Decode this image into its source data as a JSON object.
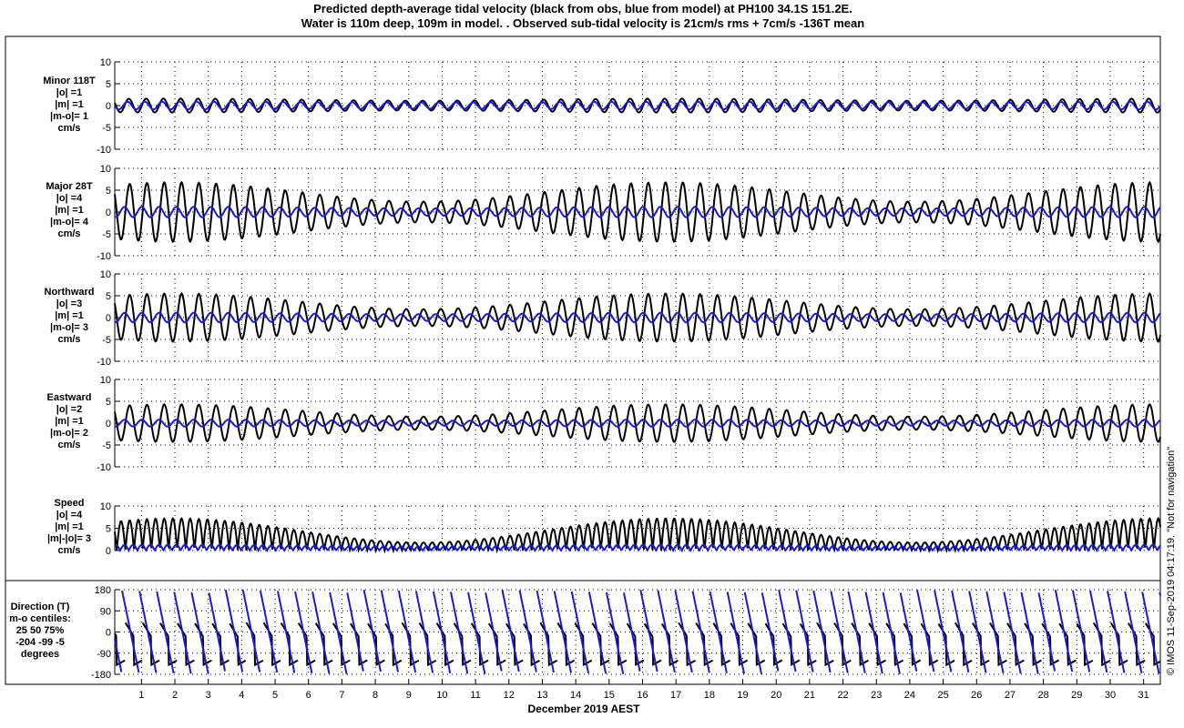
{
  "title_line1": "Predicted depth-average tidal velocity (black from obs, blue from model) at PH100 34.1S 151.2E.",
  "title_line2": "Water is 110m deep, 109m in model. . Observed sub-tidal velocity is 21cm/s rms + 7cm/s -136T mean",
  "copyright": "© IMOS 11-Sep-2019 04:17:19. \"Not for navigation\"",
  "colors": {
    "obs": "#000000",
    "model": "#1a1ad6",
    "frame": "#000000",
    "grid": "#000000"
  },
  "chart_data": {
    "type": "line",
    "xlabel": "December 2019 AEST",
    "x_ticks": [
      "1",
      "2",
      "3",
      "4",
      "5",
      "6",
      "7",
      "8",
      "9",
      "10",
      "11",
      "12",
      "13",
      "14",
      "15",
      "16",
      "17",
      "18",
      "19",
      "20",
      "21",
      "22",
      "23",
      "24",
      "25",
      "26",
      "27",
      "28",
      "29",
      "30",
      "31"
    ],
    "xlim": [
      0.2,
      31.5
    ],
    "grid": true,
    "panels": [
      {
        "id": "minor",
        "label_lines": [
          "Minor 118T",
          "|o| =1",
          "|m| =1",
          "|m-o|= 1",
          "cm/s"
        ],
        "ylim": [
          -10,
          10
        ],
        "yticks": [
          "10",
          "5",
          "0",
          "-5",
          "-10"
        ],
        "series": [
          {
            "name": "obs",
            "amplitude": 1.6,
            "spring_neap": 0.3,
            "phase": 0.3
          },
          {
            "name": "model",
            "amplitude": 0.9,
            "spring_neap": 0.2,
            "phase": 0.8
          }
        ]
      },
      {
        "id": "major",
        "label_lines": [
          "Major 28T",
          "|o| =4",
          "|m| =1",
          "|m-o|= 4",
          "cm/s"
        ],
        "ylim": [
          -10,
          10
        ],
        "yticks": [
          "10",
          "5",
          "0",
          "-5",
          "-10"
        ],
        "series": [
          {
            "name": "obs",
            "amplitude": 6.8,
            "spring_neap": 0.65,
            "phase": 0.0
          },
          {
            "name": "model",
            "amplitude": 1.2,
            "spring_neap": 0.3,
            "phase": 1.9
          }
        ]
      },
      {
        "id": "northward",
        "label_lines": [
          "Northward",
          "|o| =3",
          "|m| =1",
          "|m-o|= 3",
          "cm/s"
        ],
        "ylim": [
          -10,
          10
        ],
        "yticks": [
          "10",
          "5",
          "0",
          "-5",
          "-10"
        ],
        "series": [
          {
            "name": "obs",
            "amplitude": 5.5,
            "spring_neap": 0.65,
            "phase": 0.0
          },
          {
            "name": "model",
            "amplitude": 1.1,
            "spring_neap": 0.3,
            "phase": 1.9
          }
        ]
      },
      {
        "id": "eastward",
        "label_lines": [
          "Eastward",
          "|o| =2",
          "|m| =1",
          "|m-o|= 2",
          "cm/s"
        ],
        "ylim": [
          -10,
          10
        ],
        "yticks": [
          "10",
          "5",
          "0",
          "-5",
          "-10"
        ],
        "series": [
          {
            "name": "obs",
            "amplitude": 4.3,
            "spring_neap": 0.65,
            "phase": 0.0
          },
          {
            "name": "model",
            "amplitude": 0.8,
            "spring_neap": 0.3,
            "phase": 1.9
          }
        ]
      },
      {
        "id": "speed",
        "label_lines": [
          "Speed",
          "|o| =4",
          "|m| =1",
          "|m|-|o|= 3",
          "cm/s"
        ],
        "ylim": [
          0,
          10
        ],
        "yticks": [
          "10",
          "5",
          "0"
        ],
        "series": [
          {
            "name": "obs",
            "amplitude": 7.2,
            "spring_neap": 0.75,
            "phase": 0.0
          },
          {
            "name": "model",
            "amplitude": 1.3,
            "spring_neap": 0.3,
            "phase": 1.9
          }
        ]
      },
      {
        "id": "direction",
        "label_lines": [
          "Direction (T)",
          "m-o centiles:",
          "25  50  75%",
          "-204  -99   -5",
          "degrees"
        ],
        "ylim": [
          -180,
          180
        ],
        "yticks": [
          "180",
          "90",
          "0",
          "-90",
          "-180"
        ],
        "series": [
          {
            "name": "obs"
          },
          {
            "name": "model"
          }
        ]
      }
    ]
  }
}
